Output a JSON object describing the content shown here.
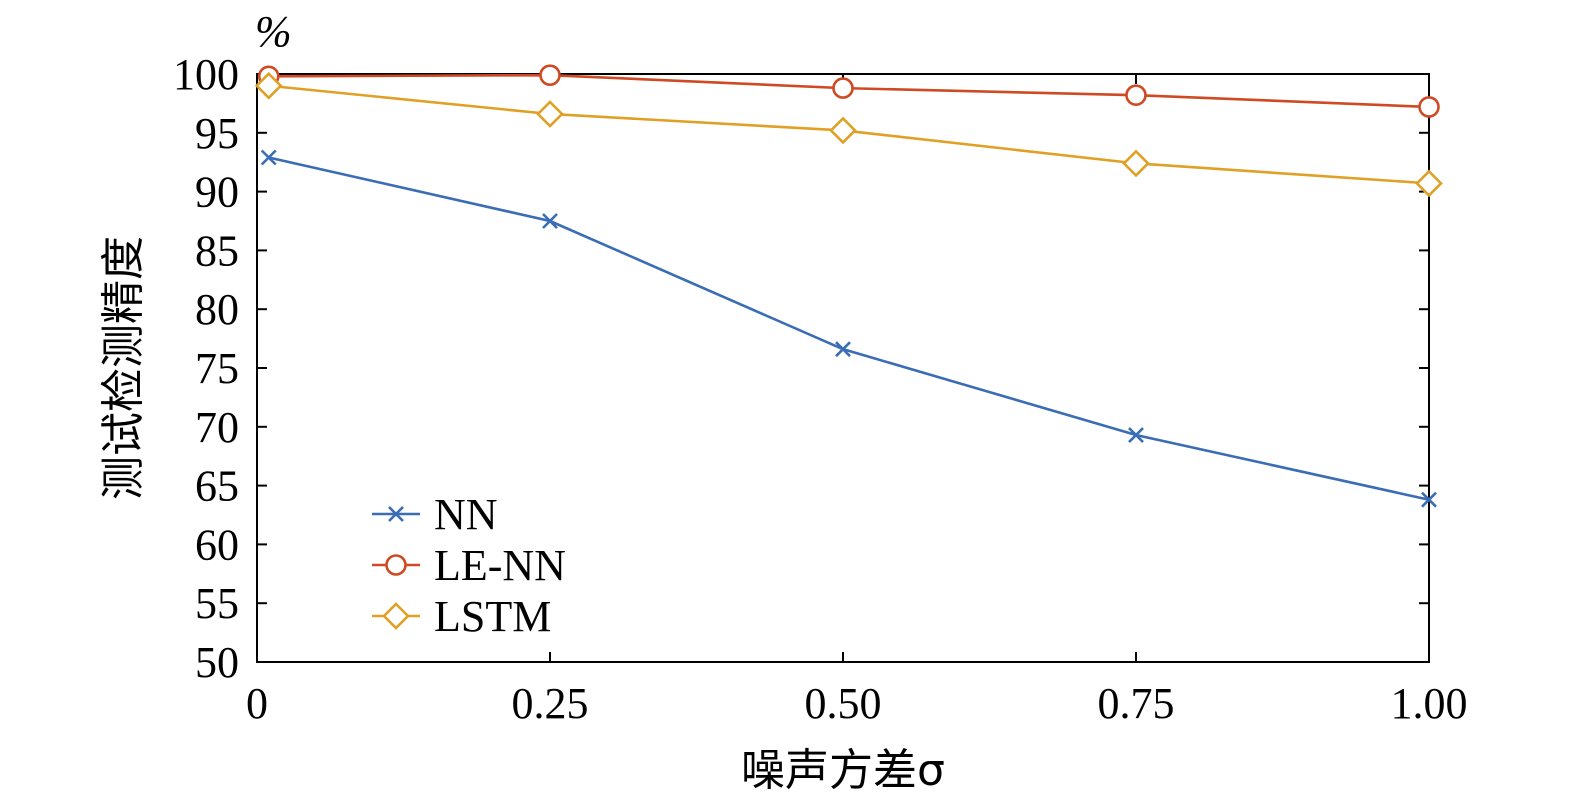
{
  "chart_data": {
    "type": "line",
    "title": "",
    "ylabel": "测试检测精度",
    "yunit": "%",
    "xlabel": "噪声方差σ",
    "xlim": [
      0,
      1.0
    ],
    "ylim": [
      50,
      100
    ],
    "xticks": [
      {
        "value": 0,
        "label": "0"
      },
      {
        "value": 0.25,
        "label": "0.25"
      },
      {
        "value": 0.5,
        "label": "0.50"
      },
      {
        "value": 0.75,
        "label": "0.75"
      },
      {
        "value": 1.0,
        "label": "1.00"
      }
    ],
    "yticks": [
      {
        "value": 50,
        "label": "50"
      },
      {
        "value": 55,
        "label": "55"
      },
      {
        "value": 60,
        "label": "60"
      },
      {
        "value": 65,
        "label": "65"
      },
      {
        "value": 70,
        "label": "70"
      },
      {
        "value": 75,
        "label": "75"
      },
      {
        "value": 80,
        "label": "80"
      },
      {
        "value": 85,
        "label": "85"
      },
      {
        "value": 90,
        "label": "90"
      },
      {
        "value": 95,
        "label": "95"
      },
      {
        "value": 100,
        "label": "100"
      }
    ],
    "grid": false,
    "legend_position": "bottom-left",
    "series": [
      {
        "name": "NN",
        "color": "#3a6db5",
        "marker": "x",
        "x": [
          0.01,
          0.25,
          0.5,
          0.75,
          1.0
        ],
        "y": [
          92.9,
          87.5,
          76.6,
          69.3,
          63.8
        ]
      },
      {
        "name": "LE-NN",
        "color": "#cf4a24",
        "marker": "circle",
        "x": [
          0.01,
          0.25,
          0.5,
          0.75,
          1.0
        ],
        "y": [
          99.8,
          99.9,
          98.8,
          98.2,
          97.2
        ]
      },
      {
        "name": "LSTM",
        "color": "#e0a024",
        "marker": "diamond",
        "x": [
          0.01,
          0.25,
          0.5,
          0.75,
          1.0
        ],
        "y": [
          99.0,
          96.6,
          95.2,
          92.4,
          90.7
        ]
      }
    ]
  }
}
